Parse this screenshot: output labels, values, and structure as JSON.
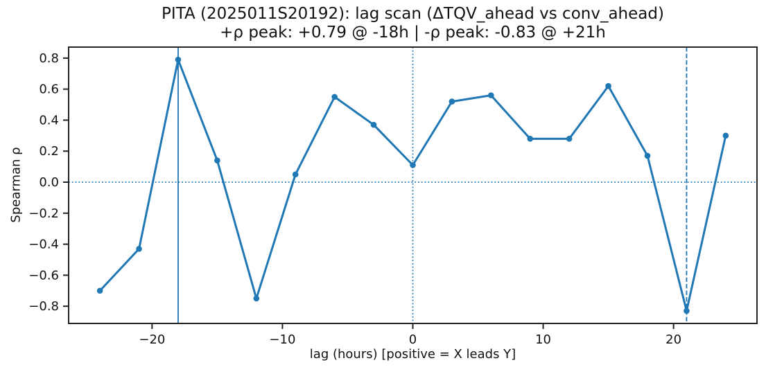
{
  "chart_data": {
    "type": "line",
    "title": "PITA (2025011S20192): lag scan (ΔTQV_ahead vs conv_ahead)",
    "subtitle": "+ρ peak: +0.79 @ -18h | -ρ peak: -0.83 @ +21h",
    "xlabel": "lag (hours) [positive = X leads Y]",
    "ylabel": "Spearman ρ",
    "x": [
      -24,
      -21,
      -18,
      -15,
      -12,
      -9,
      -6,
      -3,
      0,
      3,
      6,
      9,
      12,
      15,
      18,
      21,
      24
    ],
    "y": [
      -0.7,
      -0.43,
      0.79,
      0.14,
      -0.75,
      0.05,
      0.55,
      0.37,
      0.11,
      0.52,
      0.56,
      0.28,
      0.28,
      0.62,
      0.17,
      -0.83,
      0.3
    ],
    "xlim": [
      -26.4,
      26.4
    ],
    "ylim": [
      -0.911,
      0.871
    ],
    "xticks": [
      -20,
      -10,
      0,
      10,
      20
    ],
    "xtick_labels": [
      "−20",
      "−10",
      "0",
      "10",
      "20"
    ],
    "yticks": [
      0.8,
      0.6,
      0.4,
      0.2,
      0.0,
      -0.2,
      -0.4,
      -0.6,
      -0.8
    ],
    "ytick_labels": [
      "0.8",
      "0.6",
      "0.4",
      "0.2",
      "0.0",
      "−0.2",
      "−0.4",
      "−0.6",
      "−0.8"
    ],
    "grid": false,
    "legend": null,
    "marker": "o",
    "pos_peak": {
      "rho": 0.79,
      "lag_hours": -18
    },
    "neg_peak": {
      "rho": -0.83,
      "lag_hours": 21
    },
    "annotations": [
      {
        "kind": "vline",
        "x": -18,
        "style": "solid",
        "name": "pos-peak-vline"
      },
      {
        "kind": "vline",
        "x": 0,
        "style": "dotted",
        "name": "zero-lag-vline"
      },
      {
        "kind": "vline",
        "x": 21,
        "style": "dashed",
        "name": "neg-peak-vline"
      },
      {
        "kind": "hline",
        "y": 0,
        "style": "dotted",
        "name": "zero-rho-hline"
      }
    ]
  },
  "colors": {
    "line": "#1f77b4",
    "annotation": "#1f77b4",
    "spine": "#222222",
    "text": "#111111",
    "background": "#ffffff"
  }
}
